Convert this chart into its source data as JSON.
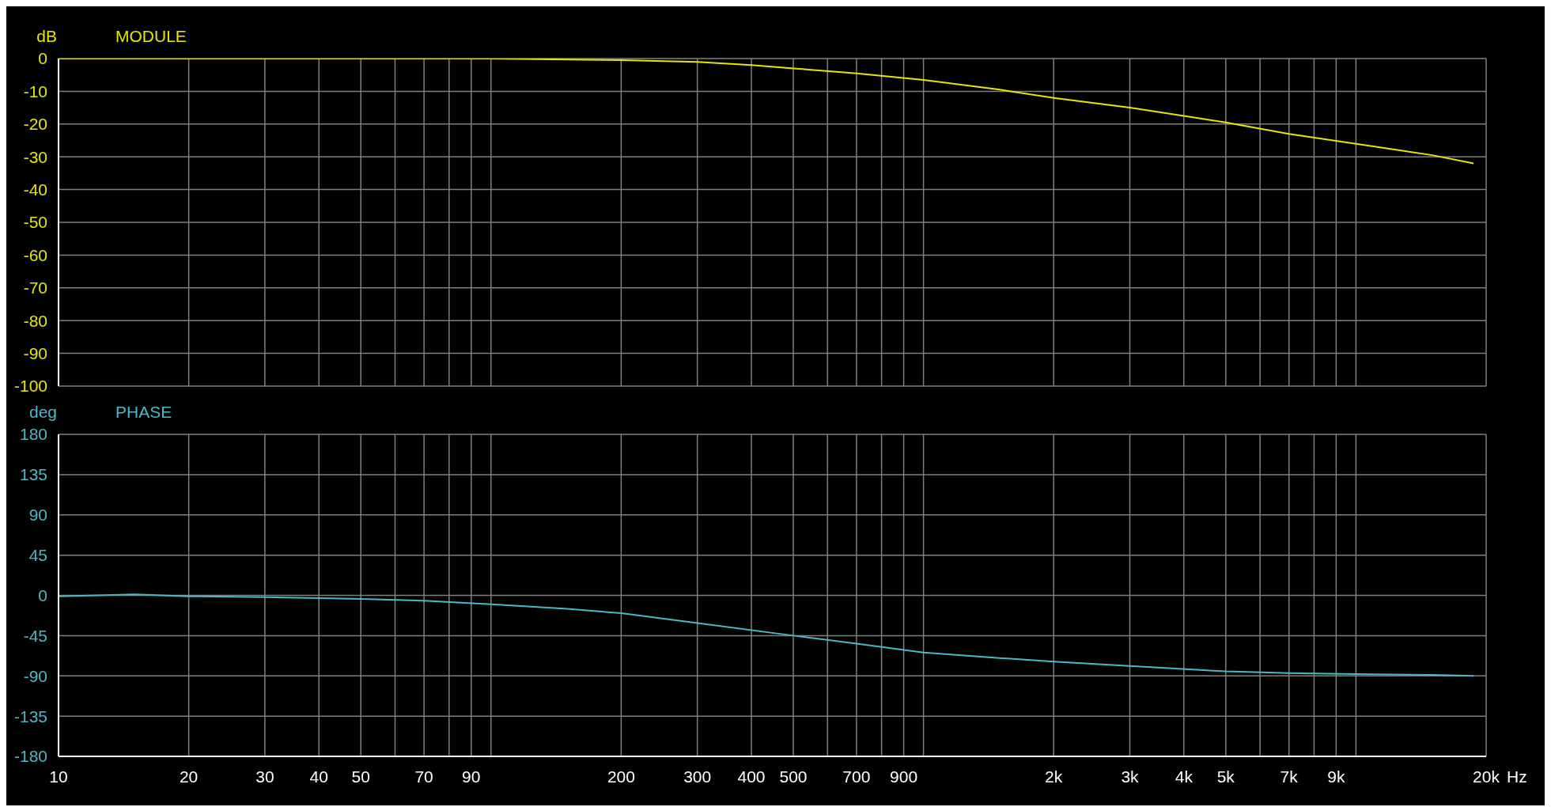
{
  "chart_data": [
    {
      "type": "line",
      "ylabel": "dB",
      "log": "x",
      "grid": true,
      "tick_labels": "y",
      "x": [
        10,
        20,
        50,
        100,
        150,
        200,
        300,
        400,
        500,
        700,
        1000,
        1500,
        2000,
        3000,
        5000,
        7000,
        10000,
        15000,
        18700
      ],
      "series": [
        {
          "name": "MODULE",
          "color": "#e6e600",
          "values": [
            0,
            0,
            0,
            0,
            -0.3,
            -0.5,
            -1,
            -2,
            -3,
            -4.5,
            -6.5,
            -9.5,
            -12,
            -15,
            -19.5,
            -23,
            -26,
            -29.5,
            -32
          ]
        }
      ],
      "xlim": [
        10,
        20000
      ],
      "xticks": [
        10,
        20,
        30,
        40,
        50,
        60,
        70,
        80,
        90,
        100,
        200,
        300,
        400,
        500,
        600,
        700,
        800,
        900,
        1000,
        2000,
        3000,
        4000,
        5000,
        6000,
        7000,
        8000,
        9000,
        10000,
        20000
      ],
      "ylim": [
        -100,
        0
      ],
      "yticks": [
        0,
        -10,
        -20,
        -30,
        -40,
        -50,
        -60,
        -70,
        -80,
        -90,
        -100
      ]
    },
    {
      "type": "line",
      "ylabel": "deg",
      "xlabel": "Hz",
      "log": "x",
      "grid": true,
      "x": [
        10,
        15,
        20,
        30,
        40,
        50,
        70,
        100,
        150,
        200,
        300,
        500,
        700,
        1000,
        1500,
        2000,
        3000,
        5000,
        7000,
        10000,
        15000,
        18700
      ],
      "series": [
        {
          "name": "PHASE",
          "color": "#4ab8c8",
          "values": [
            -1,
            1,
            -1,
            -2,
            -3,
            -4,
            -6,
            -10,
            -15,
            -20,
            -31,
            -45,
            -54,
            -64,
            -70,
            -74,
            -79,
            -85,
            -87,
            -88,
            -89,
            -90
          ]
        }
      ],
      "xlim": [
        10,
        20000
      ],
      "xticks": [
        10,
        20,
        30,
        40,
        50,
        {
          "value": 60,
          "label": null
        },
        70,
        {
          "value": 80,
          "label": null
        },
        90,
        {
          "value": 100,
          "label": null
        },
        200,
        300,
        400,
        500,
        {
          "value": 600,
          "label": null
        },
        700,
        {
          "value": 800,
          "label": null
        },
        900,
        {
          "value": 1000,
          "label": null
        },
        {
          "value": 2000,
          "label": "2k"
        },
        {
          "value": 3000,
          "label": "3k"
        },
        {
          "value": 4000,
          "label": "4k"
        },
        {
          "value": 5000,
          "label": "5k"
        },
        {
          "value": 6000,
          "label": null
        },
        {
          "value": 7000,
          "label": "7k"
        },
        {
          "value": 8000,
          "label": null
        },
        {
          "value": 9000,
          "label": "9k"
        },
        {
          "value": 10000,
          "label": null
        },
        {
          "value": 20000,
          "label": "20k"
        }
      ],
      "ylim": [
        -180,
        180
      ],
      "yticks": [
        180,
        135,
        90,
        45,
        0,
        -45,
        -90,
        -135,
        -180
      ]
    }
  ]
}
